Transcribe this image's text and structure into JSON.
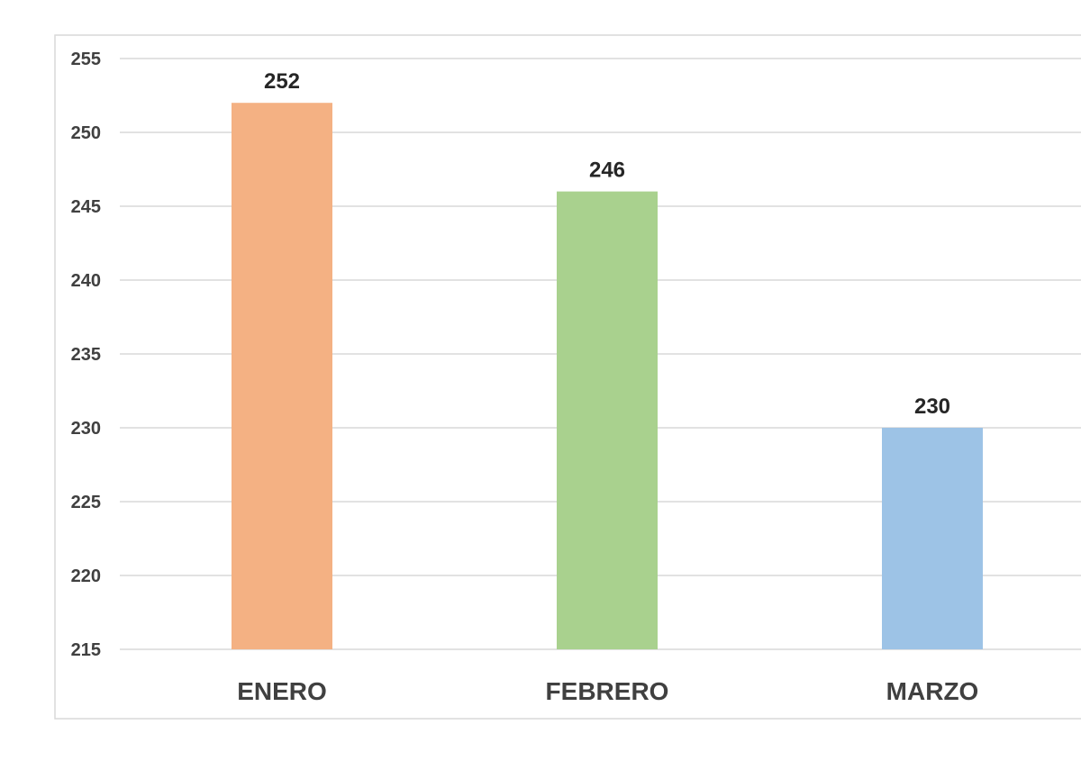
{
  "chart_data": {
    "type": "bar",
    "title": "",
    "xlabel": "",
    "ylabel": "",
    "categories": [
      "ENERO",
      "FEBRERO",
      "MARZO"
    ],
    "values": [
      252,
      246,
      230
    ],
    "data_labels": [
      "252",
      "246",
      "230"
    ],
    "colors": [
      "#f4b183",
      "#a9d18e",
      "#9dc3e6"
    ],
    "ylim": [
      215,
      255
    ],
    "yticks": [
      255,
      250,
      245,
      240,
      235,
      230,
      225,
      220,
      215
    ],
    "ytick_labels": [
      "255",
      "250",
      "245",
      "240",
      "235",
      "230",
      "225",
      "220",
      "215"
    ],
    "grid": true,
    "legend": "none"
  }
}
